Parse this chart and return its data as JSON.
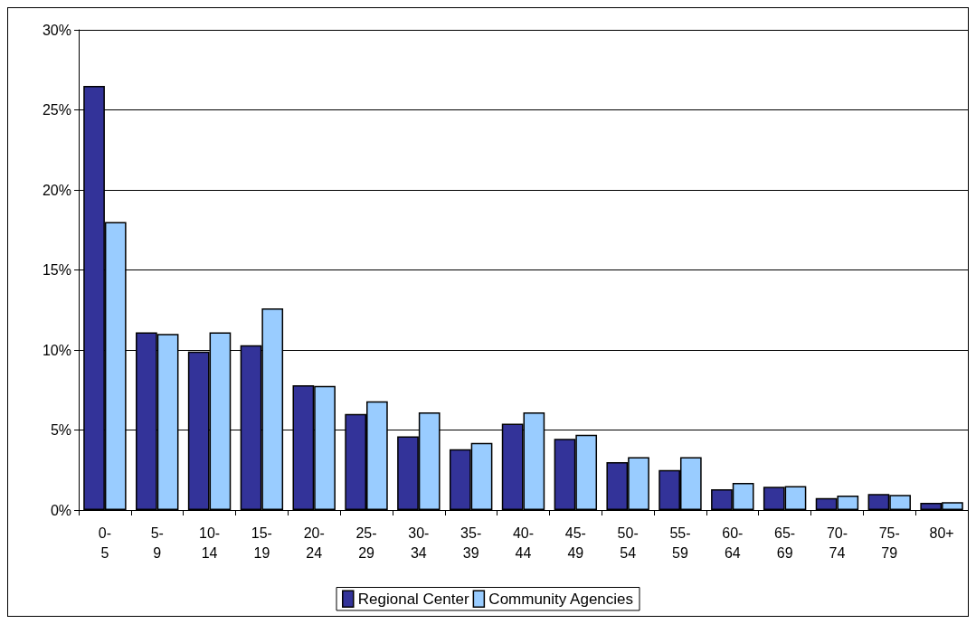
{
  "chart_data": {
    "type": "bar",
    "categories": [
      "0-5",
      "5-9",
      "10-14",
      "15-19",
      "20-24",
      "25-29",
      "30-34",
      "35-39",
      "40-44",
      "45-49",
      "50-54",
      "55-59",
      "60-64",
      "65-69",
      "70-74",
      "75-79",
      "80+"
    ],
    "series": [
      {
        "name": "Regional Center",
        "color": "#333399",
        "values": [
          26.5,
          11.1,
          9.9,
          10.3,
          7.8,
          6.0,
          4.6,
          3.8,
          5.4,
          4.45,
          3.0,
          2.5,
          1.3,
          1.45,
          0.75,
          1.0,
          0.45
        ]
      },
      {
        "name": "Community Agencies",
        "color": "#99ccff",
        "values": [
          18.0,
          11.0,
          11.1,
          12.6,
          7.75,
          6.8,
          6.1,
          4.2,
          6.1,
          4.7,
          3.3,
          3.3,
          1.7,
          1.5,
          0.9,
          0.95,
          0.5
        ]
      }
    ],
    "ylim": [
      0,
      30
    ],
    "yticks": [
      {
        "value": 0,
        "label": "0%"
      },
      {
        "value": 5,
        "label": "5%"
      },
      {
        "value": 10,
        "label": "10%"
      },
      {
        "value": 15,
        "label": "15%"
      },
      {
        "value": 20,
        "label": "20%"
      },
      {
        "value": 25,
        "label": "25%"
      },
      {
        "value": 30,
        "label": "30%"
      }
    ],
    "grid": "y",
    "legend": "bottom"
  }
}
